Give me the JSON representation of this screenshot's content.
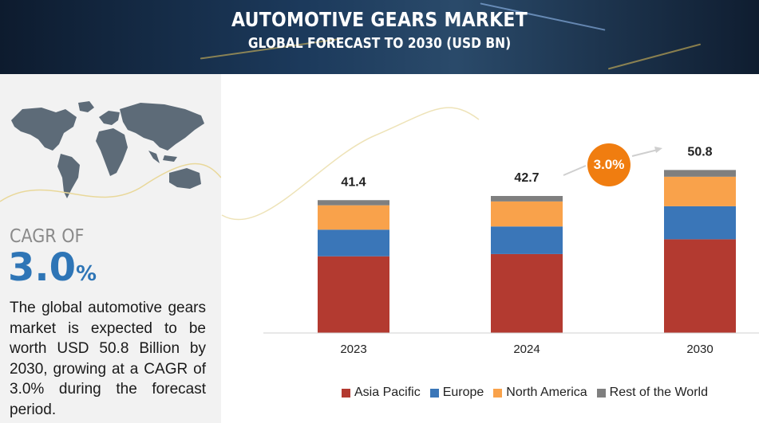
{
  "header": {
    "title": "AUTOMOTIVE GEARS MARKET",
    "subtitle": "GLOBAL FORECAST TO 2030 (USD BN)"
  },
  "sidebar": {
    "cagr_label": "CAGR OF",
    "cagr_value": "3.0",
    "cagr_unit": "%",
    "description": "The global automotive gears market is expected to be worth USD 50.8 Billion by 2030, growing at a CAGR of 3.0% during the forecast period."
  },
  "badge": {
    "text": "3.0%",
    "color": "#f07d10"
  },
  "chart_data": {
    "type": "bar",
    "stacked": true,
    "categories": [
      "2023",
      "2024",
      "2030"
    ],
    "totals": [
      41.4,
      42.7,
      50.8
    ],
    "total_labels": [
      "41.4",
      "42.7",
      "50.8"
    ],
    "series": [
      {
        "name": "Asia Pacific",
        "color": "#b33a30",
        "values": [
          23.9,
          24.6,
          29.2
        ]
      },
      {
        "name": "Europe",
        "color": "#3a76b8",
        "values": [
          8.3,
          8.6,
          10.3
        ]
      },
      {
        "name": "North America",
        "color": "#f9a24b",
        "values": [
          7.6,
          7.8,
          9.2
        ]
      },
      {
        "name": "Rest of the World",
        "color": "#7f7f7f",
        "values": [
          1.6,
          1.7,
          2.1
        ]
      }
    ],
    "ylim": [
      0,
      72
    ],
    "grid": false,
    "legend_position": "bottom"
  }
}
